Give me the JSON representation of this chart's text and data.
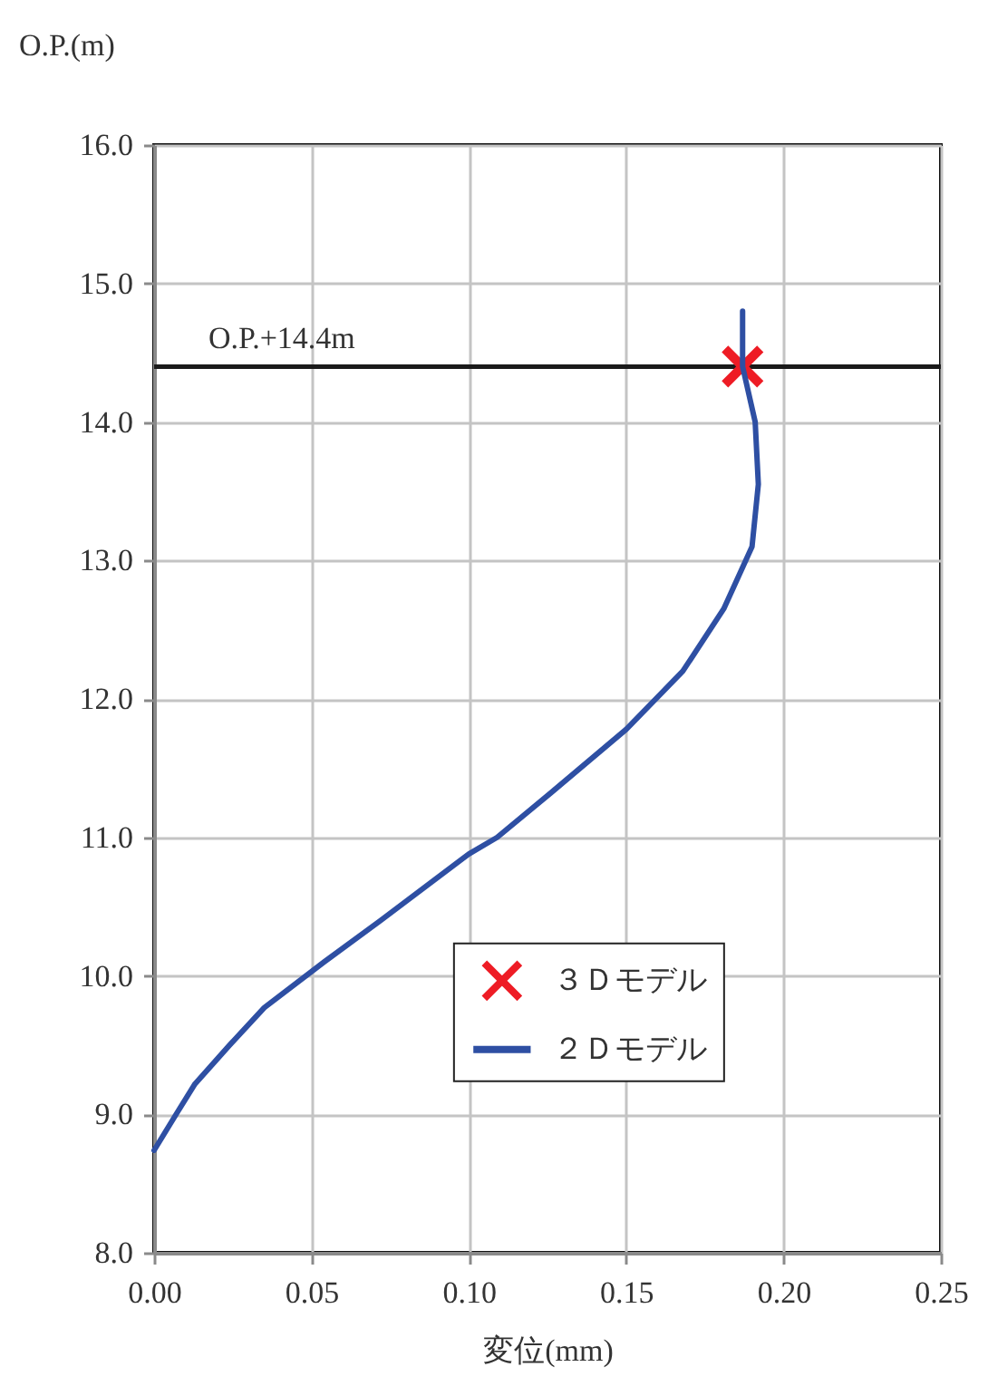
{
  "chart_data": {
    "type": "line",
    "xlabel": "変位(mm)",
    "ylabel": "O.P.(m)",
    "series": [
      {
        "name": "３Ｄモデル",
        "type": "scatter",
        "marker": "cross",
        "color": "#ee1c25",
        "x": [
          0.187
        ],
        "values": [
          14.4
        ]
      },
      {
        "name": "２Ｄモデル",
        "color": "#2e4fa3",
        "x": [
          0.187,
          0.187,
          0.191,
          0.192,
          0.19,
          0.181,
          0.168,
          0.15,
          0.126,
          0.109,
          0.1,
          0.072,
          0.054,
          0.035,
          0.024,
          0.013,
          0.007,
          0
        ],
        "values": [
          14.8,
          14.4,
          14.0,
          13.55,
          13.1,
          12.65,
          12.2,
          11.78,
          11.32,
          11.0,
          10.88,
          10.4,
          10.1,
          9.77,
          9.5,
          9.22,
          9.0,
          8.74
        ]
      }
    ],
    "xlim": [
      0,
      0.25
    ],
    "xticks": [
      {
        "value": 0,
        "label": "0.00"
      },
      {
        "value": 0.05,
        "label": "0.05"
      },
      {
        "value": 0.1,
        "label": "0.10"
      },
      {
        "value": 0.15,
        "label": "0.15"
      },
      {
        "value": 0.2,
        "label": "0.20"
      },
      {
        "value": 0.25,
        "label": "0.25"
      }
    ],
    "ylim": [
      8,
      16
    ],
    "yticks": [
      {
        "value": 8,
        "label": "8.0"
      },
      {
        "value": 9,
        "label": "9.0"
      },
      {
        "value": 10,
        "label": "10.0"
      },
      {
        "value": 11,
        "label": "11.0"
      },
      {
        "value": 12,
        "label": "12.0"
      },
      {
        "value": 13,
        "label": "13.0"
      },
      {
        "value": 14,
        "label": "14.0"
      },
      {
        "value": 15,
        "label": "15.0"
      },
      {
        "value": 16,
        "label": "16.0"
      }
    ],
    "ref_lines": [
      {
        "axis": "y",
        "value": 14.4,
        "label": "O.P.+14.4m",
        "color": "#1a1a1a"
      }
    ],
    "grid": true,
    "legend": "bottom right"
  }
}
